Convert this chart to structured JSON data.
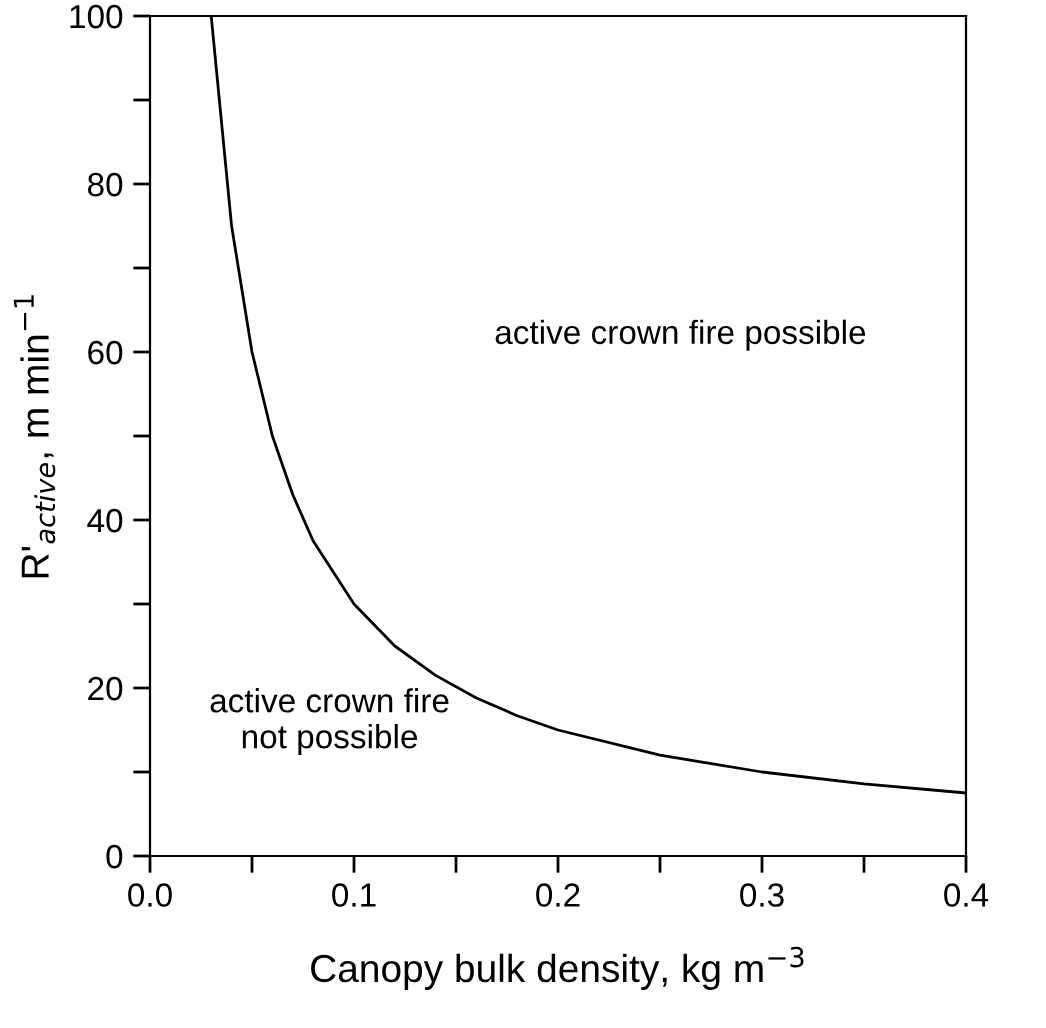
{
  "chart_data": {
    "type": "line",
    "xlabel": "Canopy bulk density, kg m$^{−3}$",
    "ylabel": "R'$_{active}$, m min$^{−1}$",
    "x": [
      0.03,
      0.04,
      0.05,
      0.06,
      0.07,
      0.08,
      0.1,
      0.12,
      0.14,
      0.16,
      0.18,
      0.2,
      0.25,
      0.3,
      0.35,
      0.4
    ],
    "series": [
      {
        "color": "#000000",
        "values": [
          100,
          75,
          60,
          50,
          43,
          37.5,
          30,
          25,
          21.5,
          18.8,
          16.7,
          15,
          12,
          10,
          8.6,
          7.5
        ]
      }
    ],
    "xlim": [
      0,
      0.4
    ],
    "ylim": [
      0,
      100
    ],
    "xticks": [
      {
        "value": 0,
        "label": "0.0"
      },
      {
        "value": 0.05,
        "label": null
      },
      0.1,
      {
        "value": 0.15,
        "label": null
      },
      0.2,
      {
        "value": 0.25,
        "label": null
      },
      0.3,
      {
        "value": 0.35,
        "label": null
      },
      0.4
    ],
    "yticks": [
      0,
      {
        "value": 10,
        "label": null
      },
      20,
      {
        "value": 30,
        "label": null
      },
      40,
      {
        "value": 50,
        "label": null
      },
      60,
      {
        "value": 70,
        "label": null
      },
      80,
      {
        "value": 90,
        "label": null
      },
      100
    ],
    "annotations": [
      "active crown fire possible",
      "active crown fire\nnot possible"
    ],
    "grid": false,
    "legend": false,
    "marker": "none",
    "line_style": "solid"
  }
}
